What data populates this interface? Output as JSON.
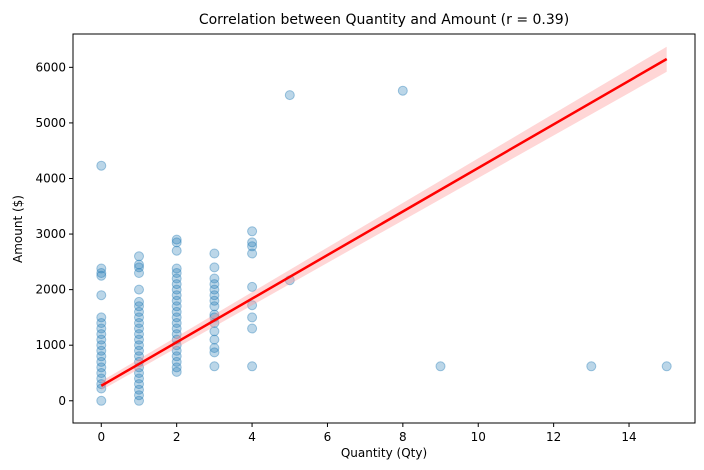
{
  "chart_data": {
    "type": "scatter",
    "title": "Correlation between Quantity and Amount (r = 0.39)",
    "xlabel": "Quantity (Qty)",
    "ylabel": "Amount ($)",
    "xlim": [
      -0.75,
      15.75
    ],
    "ylim": [
      -400,
      6600
    ],
    "xticks": [
      0,
      2,
      4,
      6,
      8,
      10,
      12,
      14
    ],
    "yticks": [
      0,
      1000,
      2000,
      3000,
      4000,
      5000,
      6000
    ],
    "grid": false,
    "colors": {
      "points": "#1f77b4",
      "regression_line": "#ff0000",
      "confidence_band": "#ff9999"
    },
    "points_alpha": 0.3,
    "points": [
      [
        0,
        0
      ],
      [
        0,
        220
      ],
      [
        0,
        300
      ],
      [
        0,
        400
      ],
      [
        0,
        500
      ],
      [
        0,
        600
      ],
      [
        0,
        700
      ],
      [
        0,
        800
      ],
      [
        0,
        900
      ],
      [
        0,
        1000
      ],
      [
        0,
        1100
      ],
      [
        0,
        1200
      ],
      [
        0,
        1300
      ],
      [
        0,
        1400
      ],
      [
        0,
        1500
      ],
      [
        0,
        1900
      ],
      [
        0,
        2250
      ],
      [
        0,
        2300
      ],
      [
        0,
        2380
      ],
      [
        0,
        4230
      ],
      [
        1,
        0
      ],
      [
        1,
        100
      ],
      [
        1,
        200
      ],
      [
        1,
        300
      ],
      [
        1,
        400
      ],
      [
        1,
        500
      ],
      [
        1,
        600
      ],
      [
        1,
        700
      ],
      [
        1,
        800
      ],
      [
        1,
        900
      ],
      [
        1,
        1000
      ],
      [
        1,
        1100
      ],
      [
        1,
        1200
      ],
      [
        1,
        1300
      ],
      [
        1,
        1400
      ],
      [
        1,
        1500
      ],
      [
        1,
        1600
      ],
      [
        1,
        1700
      ],
      [
        1,
        1780
      ],
      [
        1,
        2000
      ],
      [
        1,
        2300
      ],
      [
        1,
        2400
      ],
      [
        1,
        2450
      ],
      [
        1,
        2600
      ],
      [
        2,
        520
      ],
      [
        2,
        600
      ],
      [
        2,
        700
      ],
      [
        2,
        800
      ],
      [
        2,
        900
      ],
      [
        2,
        1000
      ],
      [
        2,
        1100
      ],
      [
        2,
        1200
      ],
      [
        2,
        1300
      ],
      [
        2,
        1400
      ],
      [
        2,
        1500
      ],
      [
        2,
        1600
      ],
      [
        2,
        1700
      ],
      [
        2,
        1800
      ],
      [
        2,
        1900
      ],
      [
        2,
        2000
      ],
      [
        2,
        2100
      ],
      [
        2,
        2200
      ],
      [
        2,
        2300
      ],
      [
        2,
        2380
      ],
      [
        2,
        2700
      ],
      [
        2,
        2850
      ],
      [
        2,
        2900
      ],
      [
        3,
        620
      ],
      [
        3,
        870
      ],
      [
        3,
        950
      ],
      [
        3,
        1100
      ],
      [
        3,
        1250
      ],
      [
        3,
        1400
      ],
      [
        3,
        1500
      ],
      [
        3,
        1550
      ],
      [
        3,
        1700
      ],
      [
        3,
        1800
      ],
      [
        3,
        1900
      ],
      [
        3,
        2000
      ],
      [
        3,
        2100
      ],
      [
        3,
        2200
      ],
      [
        3,
        2400
      ],
      [
        3,
        2650
      ],
      [
        4,
        620
      ],
      [
        4,
        1300
      ],
      [
        4,
        1500
      ],
      [
        4,
        1720
      ],
      [
        4,
        2050
      ],
      [
        4,
        2650
      ],
      [
        4,
        2780
      ],
      [
        4,
        2850
      ],
      [
        4,
        3050
      ],
      [
        5,
        2170
      ],
      [
        5,
        5500
      ],
      [
        8,
        5580
      ],
      [
        9,
        620
      ],
      [
        13,
        620
      ],
      [
        15,
        620
      ]
    ],
    "regression": {
      "x": [
        0,
        15
      ],
      "y": [
        270,
        6150
      ],
      "ci_upper": [
        350,
        6370
      ],
      "ci_lower": [
        190,
        5920
      ]
    }
  }
}
